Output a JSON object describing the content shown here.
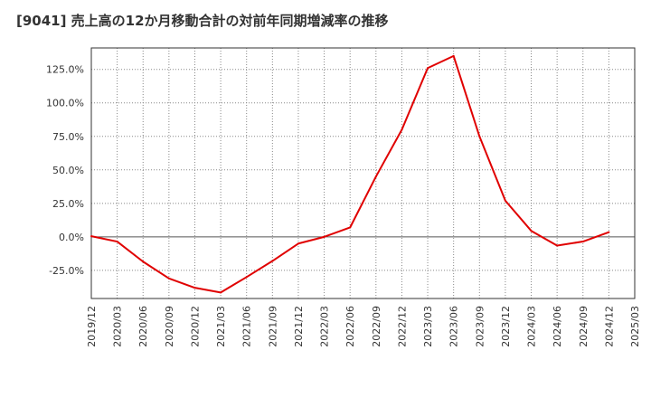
{
  "title": "[9041]  売上高の12か月移動合計の対前年同期増減率の推移",
  "colors": {
    "line": "#e00000",
    "grid": "#888888",
    "zero_line": "#555555",
    "axis": "#333333",
    "background": "#ffffff"
  },
  "chart_data": {
    "type": "line",
    "title": "[9041]  売上高の12か月移動合計の対前年同期増減率の推移",
    "xlabel": "",
    "ylabel": "",
    "x_ticks": [
      "2019/12",
      "2020/03",
      "2020/06",
      "2020/09",
      "2020/12",
      "2021/03",
      "2021/06",
      "2021/09",
      "2021/12",
      "2022/03",
      "2022/06",
      "2022/09",
      "2022/12",
      "2023/03",
      "2023/06",
      "2023/09",
      "2023/12",
      "2024/03",
      "2024/06",
      "2024/09",
      "2024/12",
      "2025/03"
    ],
    "y_ticks": [
      -25,
      0,
      25,
      50,
      75,
      100,
      125
    ],
    "y_tick_labels": [
      "-25.0%",
      "0.0%",
      "25.0%",
      "50.0%",
      "75.0%",
      "100.0%",
      "125.0%"
    ],
    "ylim": [
      -46,
      141
    ],
    "grid": true,
    "legend": "none",
    "series": [
      {
        "name": "",
        "x": [
          "2019/12",
          "2020/03",
          "2020/06",
          "2020/09",
          "2020/12",
          "2021/03",
          "2021/06",
          "2021/09",
          "2021/12",
          "2022/03",
          "2022/06",
          "2022/09",
          "2022/12",
          "2023/03",
          "2023/06",
          "2023/09",
          "2023/12",
          "2024/03",
          "2024/06",
          "2024/09",
          "2024/12"
        ],
        "values": [
          0.5,
          -3.5,
          -18.5,
          -31,
          -38,
          -41.5,
          -30,
          -18,
          -5,
          0,
          7,
          45,
          80,
          126,
          135,
          75,
          27,
          4.5,
          -6.5,
          -3.5,
          3.5
        ]
      }
    ]
  }
}
